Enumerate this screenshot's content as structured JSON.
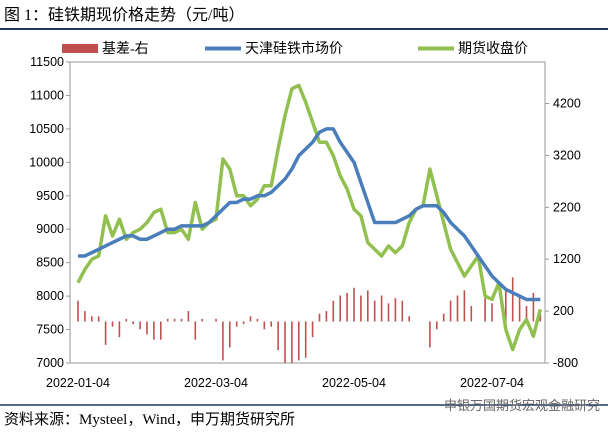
{
  "chart_data": {
    "type": "combo",
    "title": "图 1：硅铁期现价格走势（元/吨）",
    "source": "资料来源：Mysteel，Wind，申万期货研究所",
    "watermark": "申银万国期货宏观金融研究",
    "categories": [
      "2022-01-04",
      null,
      null,
      null,
      null,
      null,
      null,
      null,
      null,
      null,
      null,
      null,
      null,
      null,
      null,
      null,
      null,
      null,
      null,
      null,
      "2022-03-04",
      null,
      null,
      null,
      null,
      null,
      null,
      null,
      null,
      null,
      null,
      null,
      null,
      null,
      null,
      null,
      null,
      null,
      null,
      null,
      "2022-05-04",
      null,
      null,
      null,
      null,
      null,
      null,
      null,
      null,
      null,
      null,
      null,
      null,
      null,
      null,
      null,
      null,
      null,
      null,
      null,
      "2022-07-04",
      null,
      null,
      null,
      null,
      null,
      null,
      null
    ],
    "series": [
      {
        "name": "基差-右",
        "type": "bar",
        "axis": "y2",
        "color": "#c0504d",
        "values": [
          400,
          200,
          100,
          100,
          -450,
          -100,
          -300,
          50,
          -50,
          -150,
          -250,
          -350,
          -350,
          50,
          50,
          50,
          200,
          -350,
          50,
          0,
          50,
          -750,
          -500,
          -100,
          -50,
          100,
          50,
          -150,
          -100,
          -550,
          -800,
          -800,
          -750,
          -700,
          -300,
          150,
          200,
          400,
          500,
          550,
          650,
          500,
          600,
          400,
          500,
          350,
          450,
          400,
          100,
          0,
          0,
          -500,
          -150,
          150,
          400,
          500,
          600,
          300,
          0,
          450,
          350,
          0,
          600,
          850,
          500,
          300,
          550,
          150
        ]
      },
      {
        "name": "天津硅铁市场价",
        "type": "line",
        "color": "#4a7ebb",
        "values": [
          8600,
          8600,
          8650,
          8700,
          8750,
          8800,
          8850,
          8900,
          8900,
          8850,
          8850,
          8900,
          8950,
          9000,
          9000,
          9050,
          9050,
          9050,
          9050,
          9100,
          9200,
          9300,
          9400,
          9400,
          9450,
          9450,
          9500,
          9500,
          9550,
          9650,
          9750,
          9900,
          10100,
          10200,
          10300,
          10450,
          10500,
          10500,
          10300,
          10150,
          10000,
          9700,
          9400,
          9100,
          9100,
          9100,
          9100,
          9150,
          9200,
          9300,
          9350,
          9350,
          9350,
          9250,
          9100,
          9000,
          8900,
          8750,
          8600,
          8450,
          8300,
          8200,
          8100,
          8050,
          8000,
          7950,
          7950,
          7950
        ]
      },
      {
        "name": "期货收盘价",
        "type": "line",
        "color": "#92c050",
        "values": [
          8200,
          8400,
          8550,
          8600,
          9200,
          8900,
          9150,
          8850,
          8950,
          9000,
          9100,
          9250,
          9300,
          8950,
          8950,
          9000,
          8850,
          9400,
          9000,
          9100,
          9150,
          10050,
          9900,
          9500,
          9500,
          9350,
          9450,
          9650,
          9650,
          10200,
          10700,
          11100,
          11150,
          10900,
          10600,
          10300,
          10300,
          10100,
          9800,
          9600,
          9300,
          9200,
          8800,
          8700,
          8600,
          8750,
          8650,
          8750,
          9100,
          9300,
          9350,
          9900,
          9500,
          9100,
          8700,
          8500,
          8300,
          8450,
          8600,
          8000,
          7950,
          8200,
          7500,
          7200,
          7500,
          7650,
          7400,
          7800
        ]
      }
    ],
    "ylim": [
      7000,
      11500
    ],
    "yticks": [
      7000,
      7500,
      8000,
      8500,
      9000,
      9500,
      10000,
      10500,
      11000,
      11500
    ],
    "y2lim": [
      -800,
      5000
    ],
    "y2ticks": [
      -800,
      200,
      1200,
      2200,
      3200,
      4200
    ]
  }
}
